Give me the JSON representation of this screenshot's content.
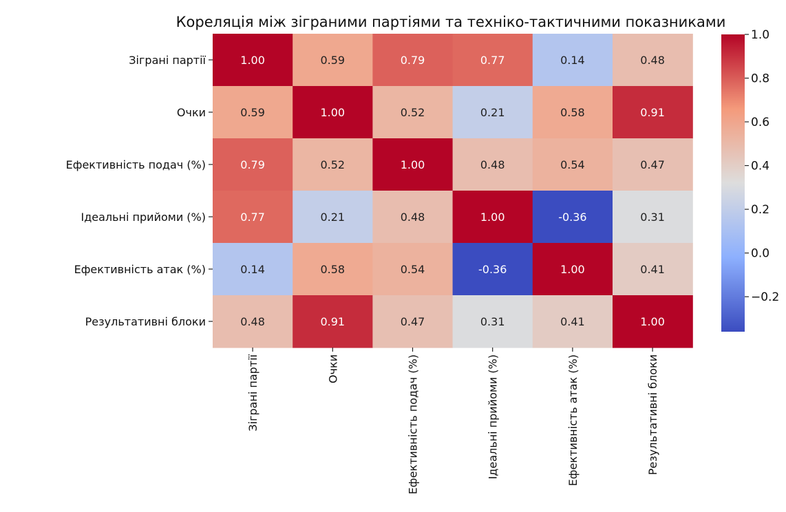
{
  "chart_data": {
    "type": "heatmap",
    "title": "Кореляція між зіграними партіями та техніко-тактичними показниками",
    "row_labels": [
      "Зіграні партії",
      "Очки",
      "Ефективність подач (%)",
      "Ідеальні прийоми (%)",
      "Ефективність атак (%)",
      "Результативні блоки"
    ],
    "col_labels": [
      "Зіграні партії",
      "Очки",
      "Ефективність подач (%)",
      "Ідеальні прийоми (%)",
      "Ефективність атак (%)",
      "Результативні блоки"
    ],
    "values": [
      [
        1.0,
        0.59,
        0.79,
        0.77,
        0.14,
        0.48
      ],
      [
        0.59,
        1.0,
        0.52,
        0.21,
        0.58,
        0.91
      ],
      [
        0.79,
        0.52,
        1.0,
        0.48,
        0.54,
        0.47
      ],
      [
        0.77,
        0.21,
        0.48,
        1.0,
        -0.36,
        0.31
      ],
      [
        0.14,
        0.58,
        0.54,
        -0.36,
        1.0,
        0.41
      ],
      [
        0.48,
        0.91,
        0.47,
        0.31,
        0.41,
        1.0
      ]
    ],
    "colormap": "coolwarm",
    "value_range": [
      -0.36,
      1.0
    ],
    "colorbar_ticks": [
      1.0,
      0.8,
      0.6,
      0.4,
      0.2,
      0.0,
      -0.2
    ],
    "colorbar_tick_labels": [
      "1.0",
      "0.8",
      "0.6",
      "0.4",
      "0.2",
      "0.0",
      "−0.2"
    ]
  }
}
